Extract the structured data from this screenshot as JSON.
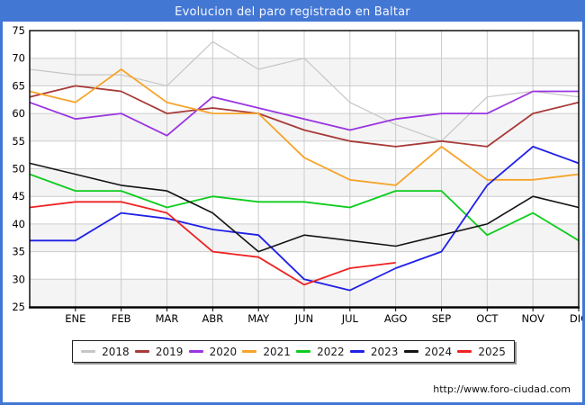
{
  "header": {
    "title": "Evolucion del paro registrado en Baltar"
  },
  "footer": {
    "url": "http://www.foro-ciudad.com"
  },
  "chart_data": {
    "type": "line",
    "title": "Evolucion del paro registrado en Baltar",
    "xlabel": "",
    "ylabel": "",
    "ylim": [
      25,
      75
    ],
    "y_ticks": [
      75,
      70,
      65,
      60,
      55,
      50,
      45,
      40,
      35,
      30,
      25
    ],
    "x_labels": [
      "ENE",
      "FEB",
      "MAR",
      "ABR",
      "MAY",
      "JUN",
      "JUL",
      "AGO",
      "SEP",
      "OCT",
      "NOV",
      "DIC"
    ],
    "points_note": "13 points per full series: first point sits on the left axis, then one point per month ENE-DIC",
    "grid": true,
    "plot_bands": [
      "#ffffff",
      "#f4f4f4"
    ],
    "gridline_color": "#cccccc",
    "legend_position": "bottom",
    "series": [
      {
        "name": "2018",
        "color": "#c6c6c6",
        "values": [
          68,
          67,
          67,
          65,
          73,
          68,
          70,
          62,
          58,
          55,
          63,
          64,
          63
        ]
      },
      {
        "name": "2019",
        "color": "#a83a38",
        "values": [
          63,
          65,
          64,
          60,
          61,
          60,
          57,
          55,
          54,
          55,
          54,
          60,
          62
        ]
      },
      {
        "name": "2020",
        "color": "#9a35e2",
        "values": [
          62,
          59,
          60,
          56,
          63,
          61,
          59,
          57,
          59,
          60,
          60,
          64,
          64
        ]
      },
      {
        "name": "2021",
        "color": "#f6a42a",
        "values": [
          64,
          62,
          68,
          62,
          60,
          60,
          52,
          48,
          47,
          54,
          48,
          48,
          49
        ]
      },
      {
        "name": "2022",
        "color": "#0ecc1e",
        "values": [
          49,
          46,
          46,
          43,
          45,
          44,
          44,
          43,
          46,
          46,
          38,
          42,
          37
        ]
      },
      {
        "name": "2023",
        "color": "#2020e8",
        "values": [
          37,
          37,
          42,
          41,
          39,
          38,
          30,
          28,
          32,
          35,
          47,
          54,
          51
        ]
      },
      {
        "name": "2024",
        "color": "#141414",
        "values": [
          51,
          49,
          47,
          46,
          42,
          35,
          38,
          37,
          36,
          38,
          40,
          45,
          43
        ]
      },
      {
        "name": "2025",
        "color": "#ee2222",
        "values": [
          43,
          44,
          44,
          42,
          35,
          34,
          29,
          32,
          33
        ]
      }
    ]
  }
}
